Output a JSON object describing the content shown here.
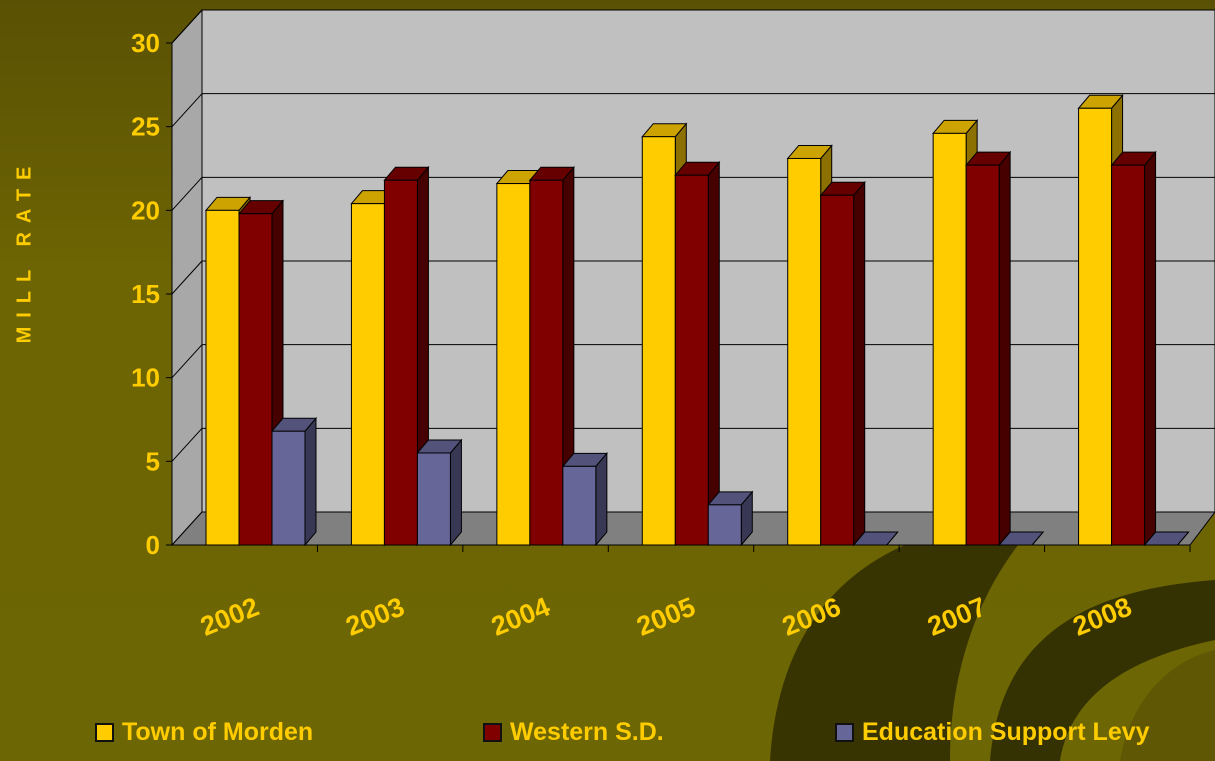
{
  "chart_data": {
    "type": "bar",
    "title": "",
    "ylabel": "MILL RATE",
    "xlabel": "",
    "categories": [
      "2002",
      "2003",
      "2004",
      "2005",
      "2006",
      "2007",
      "2008"
    ],
    "ylim": [
      0,
      30
    ],
    "yticks": [
      "0",
      "5",
      "10",
      "15",
      "20",
      "25",
      "30"
    ],
    "grid": true,
    "legend_position": "bottom",
    "series": [
      {
        "name": "Town of Morden",
        "values": [
          20.0,
          20.4,
          21.6,
          24.4,
          23.1,
          24.6,
          26.1
        ],
        "color": "#ffcc00"
      },
      {
        "name": "Western S.D.",
        "values": [
          19.8,
          21.8,
          21.8,
          22.1,
          20.9,
          22.7,
          22.7
        ],
        "color": "#800000"
      },
      {
        "name": "Education Support Levy",
        "values": [
          6.8,
          5.5,
          4.7,
          2.4,
          0,
          0,
          0
        ],
        "color": "#666699"
      }
    ]
  }
}
